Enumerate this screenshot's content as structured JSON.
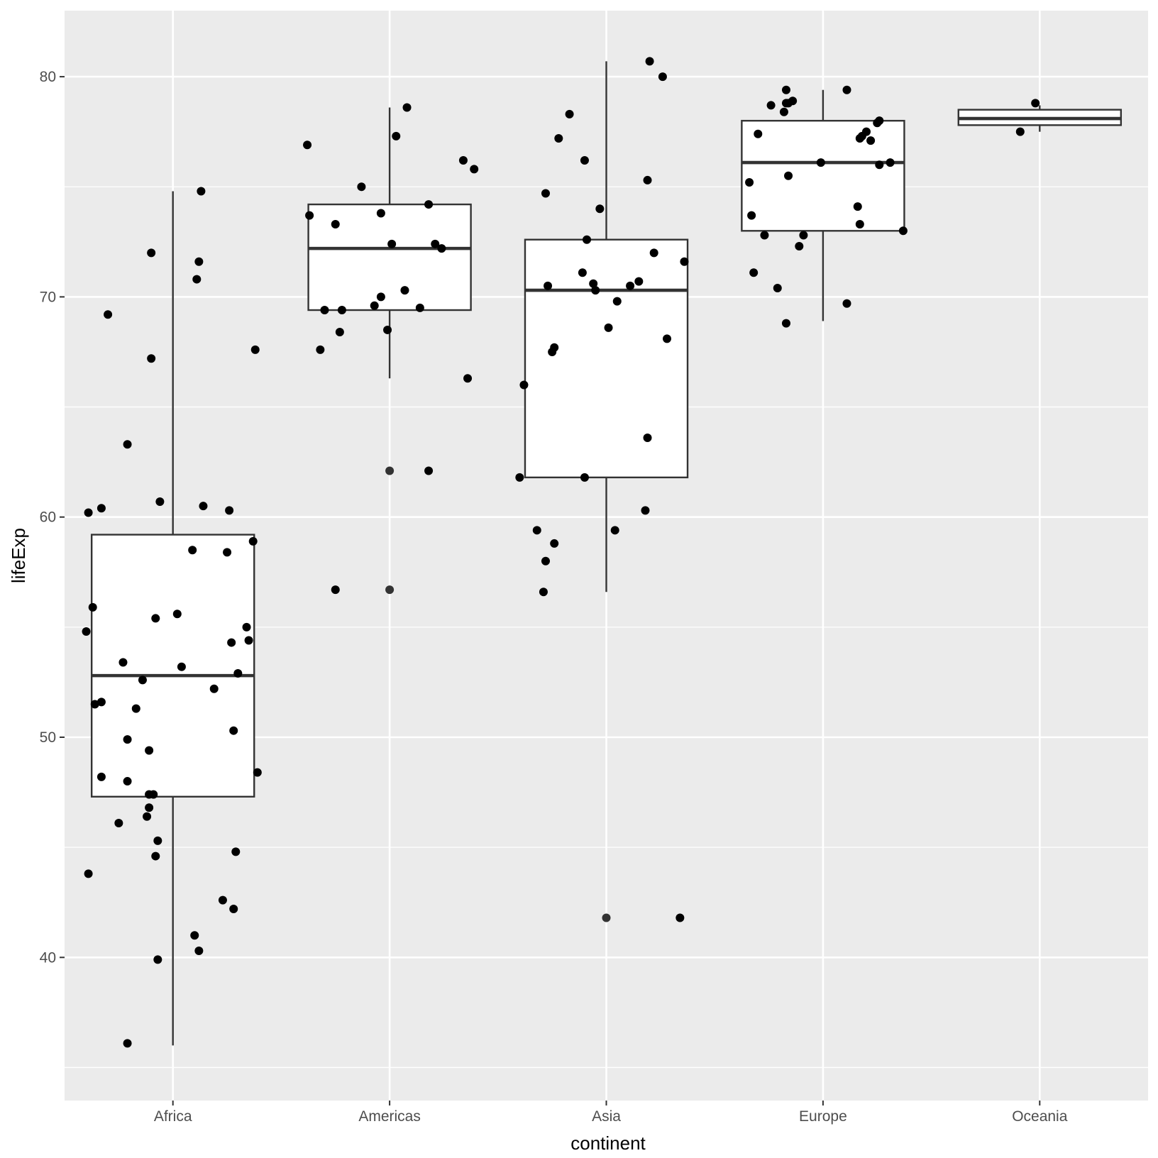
{
  "chart_data": {
    "type": "box",
    "xlabel": "continent",
    "ylabel": "lifeExp",
    "ylim": [
      33.5,
      83
    ],
    "yticks": [
      40,
      50,
      60,
      70,
      80
    ],
    "grid": true,
    "colors": {
      "panel": "#ebebeb",
      "grid": "#ffffff",
      "box_outline": "#333333",
      "box_fill": "#ffffff",
      "point": "#000000"
    },
    "categories": [
      "Africa",
      "Americas",
      "Asia",
      "Europe",
      "Oceania"
    ],
    "boxes": [
      {
        "category": "Africa",
        "whisker_low": 36.0,
        "q1": 47.3,
        "median": 52.8,
        "q3": 59.2,
        "whisker_high": 74.8,
        "outliers": []
      },
      {
        "category": "Americas",
        "whisker_low": 66.3,
        "q1": 69.4,
        "median": 72.2,
        "q3": 74.2,
        "whisker_high": 78.6,
        "outliers": [
          62.1,
          56.7
        ]
      },
      {
        "category": "Asia",
        "whisker_low": 56.6,
        "q1": 61.8,
        "median": 70.3,
        "q3": 72.6,
        "whisker_high": 80.7,
        "outliers": [
          41.8
        ]
      },
      {
        "category": "Europe",
        "whisker_low": 68.9,
        "q1": 73.0,
        "median": 76.1,
        "q3": 78.0,
        "whisker_high": 79.4,
        "outliers": []
      },
      {
        "category": "Oceania",
        "whisker_low": 77.5,
        "q1": 77.8,
        "median": 78.1,
        "q3": 78.5,
        "whisker_high": 78.7,
        "outliers": []
      }
    ],
    "points": [
      {
        "x": "Africa",
        "jitter": -0.4,
        "y": 54.8
      },
      {
        "x": "Africa",
        "jitter": -0.39,
        "y": 43.8
      },
      {
        "x": "Africa",
        "jitter": -0.39,
        "y": 60.2
      },
      {
        "x": "Africa",
        "jitter": -0.37,
        "y": 55.9
      },
      {
        "x": "Africa",
        "jitter": -0.36,
        "y": 51.5
      },
      {
        "x": "Africa",
        "jitter": -0.33,
        "y": 60.4
      },
      {
        "x": "Africa",
        "jitter": -0.33,
        "y": 48.2
      },
      {
        "x": "Africa",
        "jitter": -0.33,
        "y": 51.6
      },
      {
        "x": "Africa",
        "jitter": -0.3,
        "y": 69.2
      },
      {
        "x": "Africa",
        "jitter": -0.25,
        "y": 46.1
      },
      {
        "x": "Africa",
        "jitter": -0.23,
        "y": 53.4
      },
      {
        "x": "Africa",
        "jitter": -0.21,
        "y": 48.0
      },
      {
        "x": "Africa",
        "jitter": -0.21,
        "y": 63.3
      },
      {
        "x": "Africa",
        "jitter": -0.21,
        "y": 49.9
      },
      {
        "x": "Africa",
        "jitter": -0.21,
        "y": 36.1
      },
      {
        "x": "Africa",
        "jitter": -0.17,
        "y": 51.3
      },
      {
        "x": "Africa",
        "jitter": -0.14,
        "y": 52.6
      },
      {
        "x": "Africa",
        "jitter": -0.12,
        "y": 46.4
      },
      {
        "x": "Africa",
        "jitter": -0.11,
        "y": 47.4
      },
      {
        "x": "Africa",
        "jitter": -0.11,
        "y": 49.4
      },
      {
        "x": "Africa",
        "jitter": -0.11,
        "y": 46.8
      },
      {
        "x": "Africa",
        "jitter": -0.1,
        "y": 67.2
      },
      {
        "x": "Africa",
        "jitter": -0.1,
        "y": 72.0
      },
      {
        "x": "Africa",
        "jitter": -0.09,
        "y": 47.4
      },
      {
        "x": "Africa",
        "jitter": -0.08,
        "y": 55.4
      },
      {
        "x": "Africa",
        "jitter": -0.08,
        "y": 44.6
      },
      {
        "x": "Africa",
        "jitter": -0.07,
        "y": 45.3
      },
      {
        "x": "Africa",
        "jitter": -0.07,
        "y": 39.9
      },
      {
        "x": "Africa",
        "jitter": -0.06,
        "y": 60.7
      },
      {
        "x": "Africa",
        "jitter": 0.02,
        "y": 55.6
      },
      {
        "x": "Africa",
        "jitter": 0.04,
        "y": 53.2
      },
      {
        "x": "Africa",
        "jitter": 0.09,
        "y": 58.5
      },
      {
        "x": "Africa",
        "jitter": 0.1,
        "y": 41.0
      },
      {
        "x": "Africa",
        "jitter": 0.11,
        "y": 70.8
      },
      {
        "x": "Africa",
        "jitter": 0.12,
        "y": 71.6
      },
      {
        "x": "Africa",
        "jitter": 0.12,
        "y": 40.3
      },
      {
        "x": "Africa",
        "jitter": 0.13,
        "y": 74.8
      },
      {
        "x": "Africa",
        "jitter": 0.14,
        "y": 60.5
      },
      {
        "x": "Africa",
        "jitter": 0.19,
        "y": 52.2
      },
      {
        "x": "Africa",
        "jitter": 0.23,
        "y": 42.6
      },
      {
        "x": "Africa",
        "jitter": 0.25,
        "y": 58.4
      },
      {
        "x": "Africa",
        "jitter": 0.26,
        "y": 60.3
      },
      {
        "x": "Africa",
        "jitter": 0.27,
        "y": 54.3
      },
      {
        "x": "Africa",
        "jitter": 0.28,
        "y": 42.2
      },
      {
        "x": "Africa",
        "jitter": 0.28,
        "y": 50.3
      },
      {
        "x": "Africa",
        "jitter": 0.29,
        "y": 44.8
      },
      {
        "x": "Africa",
        "jitter": 0.3,
        "y": 52.9
      },
      {
        "x": "Africa",
        "jitter": 0.34,
        "y": 55.0
      },
      {
        "x": "Africa",
        "jitter": 0.35,
        "y": 54.4
      },
      {
        "x": "Africa",
        "jitter": 0.37,
        "y": 58.9
      },
      {
        "x": "Africa",
        "jitter": 0.38,
        "y": 67.6
      },
      {
        "x": "Africa",
        "jitter": 0.39,
        "y": 48.4
      },
      {
        "x": "Americas",
        "jitter": -0.38,
        "y": 76.9
      },
      {
        "x": "Americas",
        "jitter": -0.37,
        "y": 73.7
      },
      {
        "x": "Americas",
        "jitter": -0.32,
        "y": 67.6
      },
      {
        "x": "Americas",
        "jitter": -0.3,
        "y": 69.4
      },
      {
        "x": "Americas",
        "jitter": -0.25,
        "y": 56.7
      },
      {
        "x": "Americas",
        "jitter": -0.25,
        "y": 73.3
      },
      {
        "x": "Americas",
        "jitter": -0.23,
        "y": 68.4
      },
      {
        "x": "Americas",
        "jitter": -0.22,
        "y": 69.4
      },
      {
        "x": "Americas",
        "jitter": -0.13,
        "y": 75.0
      },
      {
        "x": "Americas",
        "jitter": -0.07,
        "y": 69.6
      },
      {
        "x": "Americas",
        "jitter": -0.04,
        "y": 70.0
      },
      {
        "x": "Americas",
        "jitter": -0.04,
        "y": 73.8
      },
      {
        "x": "Americas",
        "jitter": -0.01,
        "y": 68.5
      },
      {
        "x": "Americas",
        "jitter": 0.01,
        "y": 72.4
      },
      {
        "x": "Americas",
        "jitter": 0.03,
        "y": 77.3
      },
      {
        "x": "Americas",
        "jitter": 0.07,
        "y": 70.3
      },
      {
        "x": "Americas",
        "jitter": 0.08,
        "y": 78.6
      },
      {
        "x": "Americas",
        "jitter": 0.14,
        "y": 69.5
      },
      {
        "x": "Americas",
        "jitter": 0.18,
        "y": 74.2
      },
      {
        "x": "Americas",
        "jitter": 0.18,
        "y": 62.1
      },
      {
        "x": "Americas",
        "jitter": 0.21,
        "y": 72.4
      },
      {
        "x": "Americas",
        "jitter": 0.24,
        "y": 72.2
      },
      {
        "x": "Americas",
        "jitter": 0.34,
        "y": 76.2
      },
      {
        "x": "Americas",
        "jitter": 0.36,
        "y": 66.3
      },
      {
        "x": "Americas",
        "jitter": 0.39,
        "y": 75.8
      },
      {
        "x": "Asia",
        "jitter": -0.4,
        "y": 61.8
      },
      {
        "x": "Asia",
        "jitter": -0.38,
        "y": 66.0
      },
      {
        "x": "Asia",
        "jitter": -0.32,
        "y": 59.4
      },
      {
        "x": "Asia",
        "jitter": -0.29,
        "y": 56.6
      },
      {
        "x": "Asia",
        "jitter": -0.28,
        "y": 58.0
      },
      {
        "x": "Asia",
        "jitter": -0.28,
        "y": 74.7
      },
      {
        "x": "Asia",
        "jitter": -0.27,
        "y": 70.5
      },
      {
        "x": "Asia",
        "jitter": -0.25,
        "y": 67.5
      },
      {
        "x": "Asia",
        "jitter": -0.24,
        "y": 58.8
      },
      {
        "x": "Asia",
        "jitter": -0.24,
        "y": 67.7
      },
      {
        "x": "Asia",
        "jitter": -0.22,
        "y": 77.2
      },
      {
        "x": "Asia",
        "jitter": -0.17,
        "y": 78.3
      },
      {
        "x": "Asia",
        "jitter": -0.11,
        "y": 71.1
      },
      {
        "x": "Asia",
        "jitter": -0.1,
        "y": 61.8
      },
      {
        "x": "Asia",
        "jitter": -0.1,
        "y": 76.2
      },
      {
        "x": "Asia",
        "jitter": -0.09,
        "y": 72.6
      },
      {
        "x": "Asia",
        "jitter": -0.06,
        "y": 70.6
      },
      {
        "x": "Asia",
        "jitter": -0.05,
        "y": 70.3
      },
      {
        "x": "Asia",
        "jitter": -0.03,
        "y": 74.0
      },
      {
        "x": "Asia",
        "jitter": 0.01,
        "y": 68.6
      },
      {
        "x": "Asia",
        "jitter": 0.04,
        "y": 59.4
      },
      {
        "x": "Asia",
        "jitter": 0.05,
        "y": 69.8
      },
      {
        "x": "Asia",
        "jitter": 0.11,
        "y": 70.5
      },
      {
        "x": "Asia",
        "jitter": 0.15,
        "y": 70.7
      },
      {
        "x": "Asia",
        "jitter": 0.18,
        "y": 60.3
      },
      {
        "x": "Asia",
        "jitter": 0.19,
        "y": 75.3
      },
      {
        "x": "Asia",
        "jitter": 0.19,
        "y": 63.6
      },
      {
        "x": "Asia",
        "jitter": 0.2,
        "y": 80.7
      },
      {
        "x": "Asia",
        "jitter": 0.22,
        "y": 72.0
      },
      {
        "x": "Asia",
        "jitter": 0.26,
        "y": 80.0
      },
      {
        "x": "Asia",
        "jitter": 0.28,
        "y": 68.1
      },
      {
        "x": "Asia",
        "jitter": 0.34,
        "y": 41.8
      },
      {
        "x": "Asia",
        "jitter": 0.36,
        "y": 71.6
      },
      {
        "x": "Europe",
        "jitter": -0.34,
        "y": 75.2
      },
      {
        "x": "Europe",
        "jitter": -0.33,
        "y": 73.7
      },
      {
        "x": "Europe",
        "jitter": -0.32,
        "y": 71.1
      },
      {
        "x": "Europe",
        "jitter": -0.3,
        "y": 77.4
      },
      {
        "x": "Europe",
        "jitter": -0.27,
        "y": 72.8
      },
      {
        "x": "Europe",
        "jitter": -0.24,
        "y": 78.7
      },
      {
        "x": "Europe",
        "jitter": -0.21,
        "y": 70.4
      },
      {
        "x": "Europe",
        "jitter": -0.18,
        "y": 78.4
      },
      {
        "x": "Europe",
        "jitter": -0.17,
        "y": 78.8
      },
      {
        "x": "Europe",
        "jitter": -0.17,
        "y": 68.8
      },
      {
        "x": "Europe",
        "jitter": -0.17,
        "y": 79.4
      },
      {
        "x": "Europe",
        "jitter": -0.16,
        "y": 75.5
      },
      {
        "x": "Europe",
        "jitter": -0.16,
        "y": 78.8
      },
      {
        "x": "Europe",
        "jitter": -0.14,
        "y": 78.9
      },
      {
        "x": "Europe",
        "jitter": -0.11,
        "y": 72.3
      },
      {
        "x": "Europe",
        "jitter": -0.09,
        "y": 72.8
      },
      {
        "x": "Europe",
        "jitter": -0.01,
        "y": 76.1
      },
      {
        "x": "Europe",
        "jitter": 0.11,
        "y": 69.7
      },
      {
        "x": "Europe",
        "jitter": 0.11,
        "y": 79.4
      },
      {
        "x": "Europe",
        "jitter": 0.16,
        "y": 74.1
      },
      {
        "x": "Europe",
        "jitter": 0.17,
        "y": 73.3
      },
      {
        "x": "Europe",
        "jitter": 0.17,
        "y": 77.2
      },
      {
        "x": "Europe",
        "jitter": 0.18,
        "y": 77.3
      },
      {
        "x": "Europe",
        "jitter": 0.2,
        "y": 77.5
      },
      {
        "x": "Europe",
        "jitter": 0.22,
        "y": 77.1
      },
      {
        "x": "Europe",
        "jitter": 0.25,
        "y": 77.9
      },
      {
        "x": "Europe",
        "jitter": 0.26,
        "y": 78.0
      },
      {
        "x": "Europe",
        "jitter": 0.26,
        "y": 76.0
      },
      {
        "x": "Europe",
        "jitter": 0.31,
        "y": 76.1
      },
      {
        "x": "Europe",
        "jitter": 0.37,
        "y": 73.0
      },
      {
        "x": "Oceania",
        "jitter": -0.09,
        "y": 77.5
      },
      {
        "x": "Oceania",
        "jitter": -0.02,
        "y": 78.8
      }
    ]
  }
}
